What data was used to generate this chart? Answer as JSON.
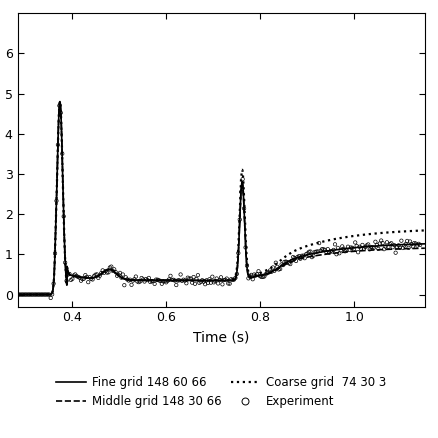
{
  "title": "",
  "xlabel": "Time (s)",
  "ylabel": "",
  "xlim": [
    0.285,
    1.15
  ],
  "ylim": [
    -0.3,
    7.0
  ],
  "yticks": [
    0,
    1,
    2,
    3,
    4,
    5,
    6
  ],
  "xticks": [
    0.4,
    0.6,
    0.8,
    1.0
  ],
  "legend_entries": [
    {
      "label": "Fine grid 148 60 66",
      "ls": "-",
      "lw": 1.2
    },
    {
      "label": "Middle grid 148 30 66",
      "ls": "--",
      "lw": 1.2
    },
    {
      "label": "Coarse grid  74 30 3",
      "ls": ":",
      "lw": 1.6
    },
    {
      "label": "Experiment",
      "ls": "",
      "lw": 0,
      "marker": "o"
    }
  ],
  "bg_color": "#ffffff",
  "figsize": [
    4.38,
    4.38
  ],
  "dpi": 100
}
